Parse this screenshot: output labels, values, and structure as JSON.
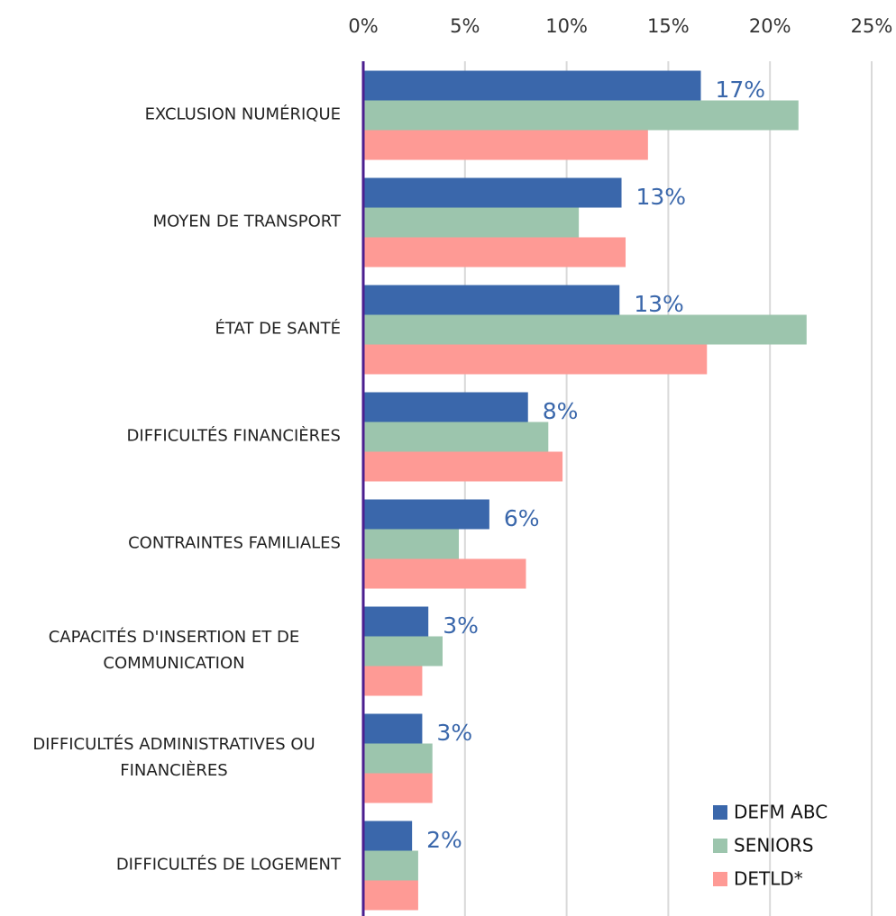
{
  "chart_data": {
    "type": "barh",
    "categories": [
      "EXCLUSION NUMÉRIQUE",
      "MOYEN DE TRANSPORT",
      "ÉTAT DE SANTÉ",
      "DIFFICULTÉS FINANCIÈRES",
      "CONTRAINTES FAMILIALES",
      "CAPACITÉS D'INSERTION ET DE COMMUNICATION",
      "DIFFICULTÉS ADMINISTRATIVES OU FINANCIÈRES",
      "DIFFICULTÉS DE LOGEMENT"
    ],
    "series": [
      {
        "name": "DEFM ABC",
        "color": "#3a67ab",
        "values": [
          16.6,
          12.7,
          12.6,
          8.1,
          6.2,
          3.2,
          2.9,
          2.4
        ],
        "value_labels": [
          "17%",
          "13%",
          "13%",
          "8%",
          "6%",
          "3%",
          "3%",
          "2%"
        ]
      },
      {
        "name": "SENIORS",
        "color": "#9cc5ad",
        "values": [
          21.4,
          10.6,
          21.8,
          9.1,
          4.7,
          3.9,
          3.4,
          2.7
        ]
      },
      {
        "name": "DETLD*",
        "color": "#fe9a95",
        "values": [
          14.0,
          12.9,
          16.9,
          9.8,
          8.0,
          2.9,
          3.4,
          2.7
        ]
      }
    ],
    "xlim": [
      0,
      25
    ],
    "xticks": [
      {
        "value": 0,
        "label": "0%"
      },
      {
        "value": 5,
        "label": "5%"
      },
      {
        "value": 10,
        "label": "10%"
      },
      {
        "value": 15,
        "label": "15%"
      },
      {
        "value": 20,
        "label": "20%"
      },
      {
        "value": 25,
        "label": "25%"
      }
    ],
    "grid": true,
    "legend": "lower right"
  }
}
